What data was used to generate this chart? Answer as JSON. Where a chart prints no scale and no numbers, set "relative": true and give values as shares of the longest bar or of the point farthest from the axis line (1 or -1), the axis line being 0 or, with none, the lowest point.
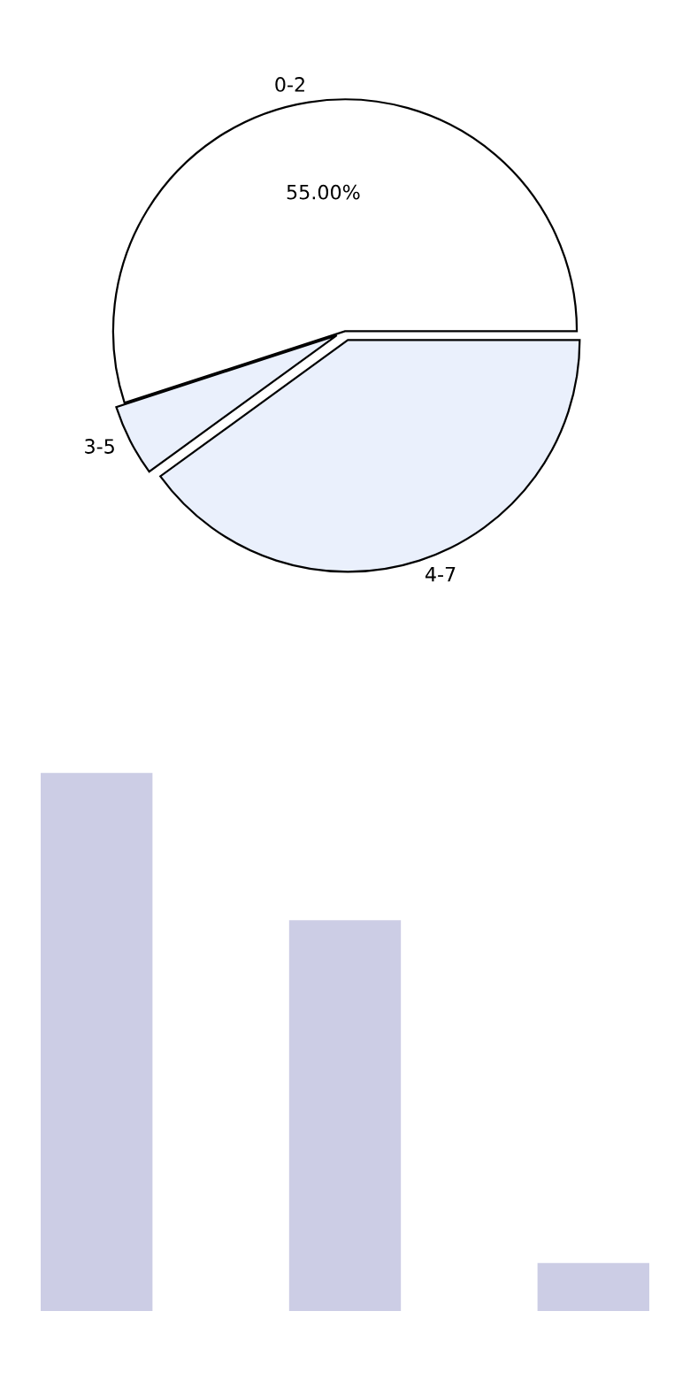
{
  "chart_data": [
    {
      "type": "pie",
      "categories": [
        "0-2",
        "3-5",
        "4-7"
      ],
      "values": [
        55,
        5,
        40
      ],
      "colors": [
        "#ffffff",
        "#eaf0fc",
        "#eaf0fc"
      ],
      "value_labels": [
        "55.00%",
        null,
        null
      ]
    },
    {
      "type": "bar",
      "categories": [
        null,
        null,
        null
      ],
      "values": [
        1,
        0.726,
        0.089
      ],
      "color": "#cccde5",
      "relative": true
    }
  ]
}
